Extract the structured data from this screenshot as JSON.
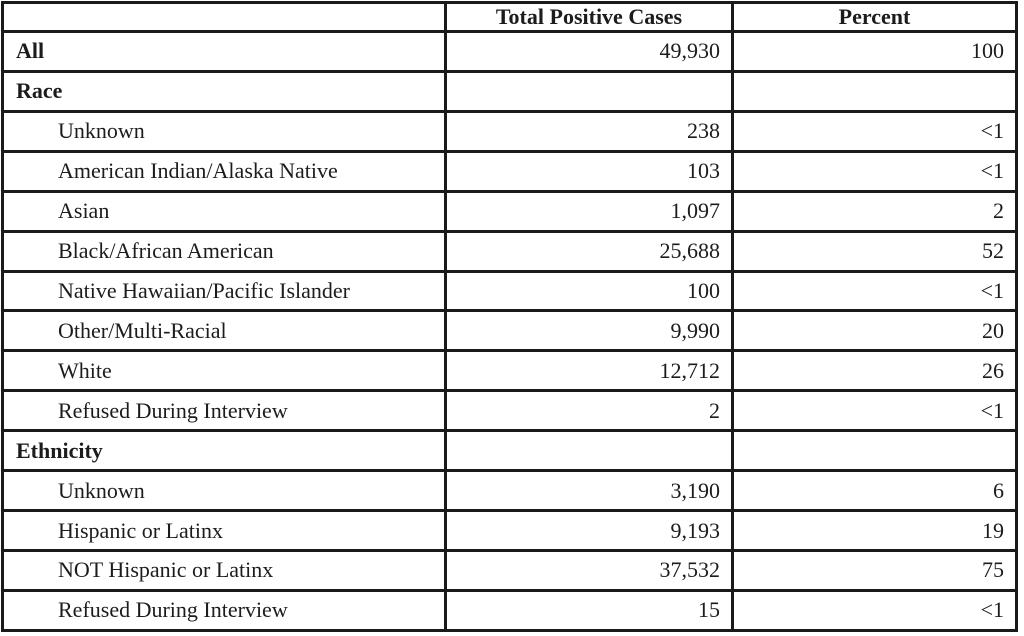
{
  "table": {
    "header": {
      "label": "",
      "cases": "Total Positive Cases",
      "percent": "Percent"
    },
    "rows": [
      {
        "label": "All",
        "cases": "49,930",
        "percent": "100"
      },
      {
        "label": "Race",
        "cases": "",
        "percent": ""
      },
      {
        "label": "Unknown",
        "cases": "238",
        "percent": "<1"
      },
      {
        "label": "American Indian/Alaska Native",
        "cases": "103",
        "percent": "<1"
      },
      {
        "label": "Asian",
        "cases": "1,097",
        "percent": "2"
      },
      {
        "label": "Black/African American",
        "cases": "25,688",
        "percent": "52"
      },
      {
        "label": "Native Hawaiian/Pacific Islander",
        "cases": "100",
        "percent": "<1"
      },
      {
        "label": "Other/Multi-Racial",
        "cases": "9,990",
        "percent": "20"
      },
      {
        "label": "White",
        "cases": "12,712",
        "percent": "26"
      },
      {
        "label": "Refused During Interview",
        "cases": "2",
        "percent": "<1"
      },
      {
        "label": "Ethnicity",
        "cases": "",
        "percent": ""
      },
      {
        "label": "Unknown",
        "cases": "3,190",
        "percent": "6"
      },
      {
        "label": "Hispanic or Latinx",
        "cases": "9,193",
        "percent": "19"
      },
      {
        "label": "NOT Hispanic or Latinx",
        "cases": "37,532",
        "percent": "75"
      },
      {
        "label": "Refused During Interview",
        "cases": "15",
        "percent": "<1"
      }
    ],
    "colors": {
      "border": "#1a1a1a",
      "text": "#1c1c1c",
      "background": "#ffffff"
    }
  }
}
